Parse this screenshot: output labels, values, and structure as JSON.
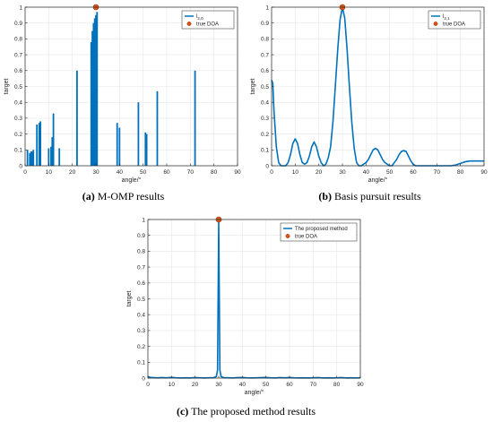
{
  "captions": [
    {
      "letter": "(a)",
      "text": " M-OMP results"
    },
    {
      "letter": "(b)",
      "text": " Basis pursuit results"
    },
    {
      "letter": "(c)",
      "text": " The proposed method results"
    }
  ],
  "colors": {
    "line": "#0072bd",
    "marker": "#d95319",
    "grid": "#e6e6e6",
    "axis": "#262626"
  },
  "chart_data": [
    {
      "type": "bar",
      "xlabel": "angle/°",
      "ylabel": "target",
      "xlim": [
        0,
        90
      ],
      "ylim": [
        0,
        1
      ],
      "xticks": [
        0,
        10,
        20,
        30,
        40,
        50,
        60,
        70,
        80,
        90
      ],
      "yticks": [
        0,
        0.1,
        0.2,
        0.3,
        0.4,
        0.5,
        0.6,
        0.7,
        0.8,
        0.9,
        1
      ],
      "grid": true,
      "legend_position": "top-right",
      "legend": [
        {
          "label": "l",
          "sub": "2,0",
          "kind": "line"
        },
        {
          "label": "true DOA",
          "kind": "marker"
        }
      ],
      "x": [
        1,
        2,
        2.5,
        3,
        3.5,
        5,
        6,
        6.5,
        10,
        11,
        11.5,
        12,
        14.5,
        22,
        28,
        28.5,
        29,
        29.5,
        30,
        30.5,
        39,
        40,
        48,
        51,
        51.5,
        56,
        72
      ],
      "values": [
        0.1,
        0.08,
        0.09,
        0.09,
        0.1,
        0.26,
        0.27,
        0.28,
        0.11,
        0.12,
        0.18,
        0.33,
        0.11,
        0.6,
        0.78,
        0.85,
        0.9,
        0.93,
        0.95,
        0.97,
        0.27,
        0.24,
        0.4,
        0.21,
        0.2,
        0.47,
        0.6
      ],
      "true_doa": {
        "x": 30,
        "y": 1
      }
    },
    {
      "type": "line",
      "xlabel": "angle/°",
      "ylabel": "target",
      "xlim": [
        0,
        90
      ],
      "ylim": [
        0,
        1
      ],
      "xticks": [
        0,
        10,
        20,
        30,
        40,
        50,
        60,
        70,
        80,
        90
      ],
      "yticks": [
        0,
        0.1,
        0.2,
        0.3,
        0.4,
        0.5,
        0.6,
        0.7,
        0.8,
        0.9,
        1
      ],
      "grid": true,
      "legend_position": "top-right",
      "legend": [
        {
          "label": "l",
          "sub": "2,1",
          "kind": "line"
        },
        {
          "label": "true DOA",
          "kind": "marker"
        }
      ],
      "x": [
        0,
        0.5,
        1,
        2,
        3,
        4,
        5,
        6,
        7,
        8,
        9,
        10,
        11,
        12,
        13,
        14,
        15,
        16,
        17,
        18,
        19,
        20,
        21,
        22,
        23,
        24,
        25,
        26,
        27,
        28,
        29,
        30,
        31,
        32,
        33,
        34,
        35,
        36,
        37,
        38,
        39,
        40,
        41,
        42,
        43,
        44,
        45,
        46,
        47,
        48,
        49,
        50,
        51,
        52,
        53,
        54,
        55,
        56,
        57,
        58,
        59,
        60,
        61,
        62,
        64,
        66,
        68,
        70,
        72,
        74,
        76,
        78,
        80,
        82,
        84,
        86,
        88,
        90
      ],
      "values": [
        0.54,
        0.52,
        0.35,
        0.12,
        0.02,
        0.0,
        0.0,
        0.0,
        0.02,
        0.07,
        0.14,
        0.17,
        0.14,
        0.07,
        0.02,
        0.01,
        0.02,
        0.06,
        0.12,
        0.15,
        0.12,
        0.06,
        0.02,
        0.0,
        0.01,
        0.05,
        0.12,
        0.28,
        0.5,
        0.73,
        0.92,
        1.0,
        0.93,
        0.73,
        0.49,
        0.27,
        0.11,
        0.02,
        0.0,
        0.0,
        0.01,
        0.02,
        0.04,
        0.07,
        0.1,
        0.11,
        0.1,
        0.07,
        0.04,
        0.02,
        0.01,
        0.0,
        0.0,
        0.02,
        0.04,
        0.07,
        0.09,
        0.095,
        0.09,
        0.06,
        0.03,
        0.01,
        0.0,
        0.0,
        0.0,
        0.0,
        0.0,
        0.0,
        0.0,
        0.0,
        0.0,
        0.005,
        0.015,
        0.025,
        0.03,
        0.03,
        0.03,
        0.03
      ],
      "true_doa": {
        "x": 30,
        "y": 1
      }
    },
    {
      "type": "line",
      "xlabel": "angle/°",
      "ylabel": "target",
      "xlim": [
        0,
        90
      ],
      "ylim": [
        0,
        1
      ],
      "xticks": [
        0,
        10,
        20,
        30,
        40,
        50,
        60,
        70,
        80,
        90
      ],
      "yticks": [
        0,
        0.1,
        0.2,
        0.3,
        0.4,
        0.5,
        0.6,
        0.7,
        0.8,
        0.9,
        1
      ],
      "grid": true,
      "legend_position": "top-right",
      "legend": [
        {
          "label": "The proposed method",
          "sub": "",
          "kind": "line"
        },
        {
          "label": "true DOA",
          "kind": "marker"
        }
      ],
      "x": [
        0,
        1,
        2,
        4,
        6,
        8,
        10,
        12,
        14,
        16,
        18,
        20,
        22,
        24,
        26,
        28,
        29,
        29.5,
        29.8,
        30,
        30.2,
        30.5,
        31,
        32,
        34,
        36,
        38,
        40,
        42,
        44,
        46,
        48,
        50,
        52,
        54,
        56,
        58,
        60,
        62,
        64,
        66,
        68,
        70,
        72,
        74,
        76,
        78,
        80,
        82,
        84,
        86,
        88,
        90
      ],
      "values": [
        0.01,
        0.005,
        0.003,
        0.002,
        0.003,
        0.002,
        0.005,
        0.002,
        0.001,
        0.002,
        0.001,
        0.003,
        0.002,
        0.001,
        0.002,
        0.003,
        0.01,
        0.05,
        0.6,
        1.0,
        0.6,
        0.05,
        0.01,
        0.003,
        0.002,
        0.001,
        0.003,
        0.004,
        0.002,
        0.001,
        0.002,
        0.003,
        0.004,
        0.002,
        0.001,
        0.003,
        0.002,
        0.004,
        0.002,
        0.001,
        0.002,
        0.001,
        0.002,
        0.003,
        0.001,
        0.002,
        0.001,
        0.002,
        0.003,
        0.001,
        0.002,
        0.001,
        0.002
      ],
      "true_doa": {
        "x": 30,
        "y": 1
      }
    }
  ]
}
